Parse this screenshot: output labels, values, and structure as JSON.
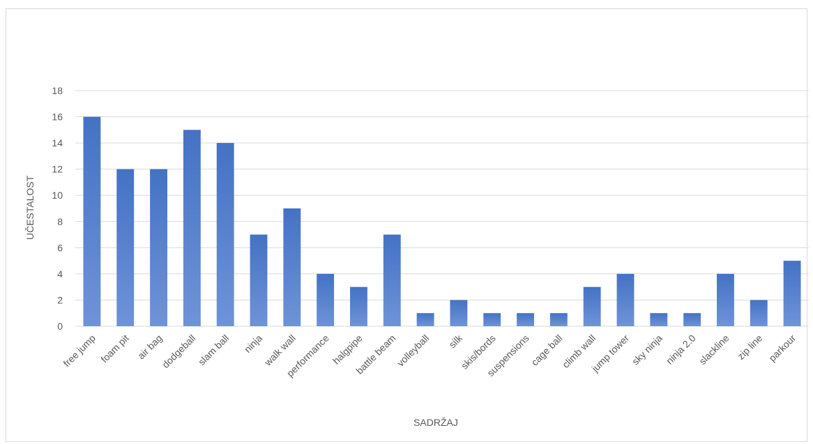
{
  "chart_data": {
    "type": "bar",
    "title": "",
    "xlabel": "SADRŽAJ",
    "ylabel": "UČESTALOST",
    "ylim": [
      0,
      18
    ],
    "yticks": [
      0,
      2,
      4,
      6,
      8,
      10,
      12,
      14,
      16,
      18
    ],
    "grid": true,
    "legend": "none",
    "bar_color": "#4472c4",
    "bar_color_light": "#6f93d8",
    "categories": [
      "free jump",
      "foam pit",
      "air bag",
      "dodgeball",
      "slam ball",
      "ninja",
      "walk wall",
      "performance",
      "halgpipe",
      "battle beam",
      "volleyball",
      "silk",
      "skis/bords",
      "suspensions",
      "cage ball",
      "climb wall",
      "jump tower",
      "sky ninja",
      "ninja 2.0",
      "slackline",
      "zip line",
      "parkour"
    ],
    "values": [
      16,
      12,
      12,
      15,
      14,
      7,
      9,
      4,
      3,
      7,
      1,
      2,
      1,
      1,
      1,
      3,
      4,
      1,
      1,
      4,
      2,
      5
    ]
  }
}
